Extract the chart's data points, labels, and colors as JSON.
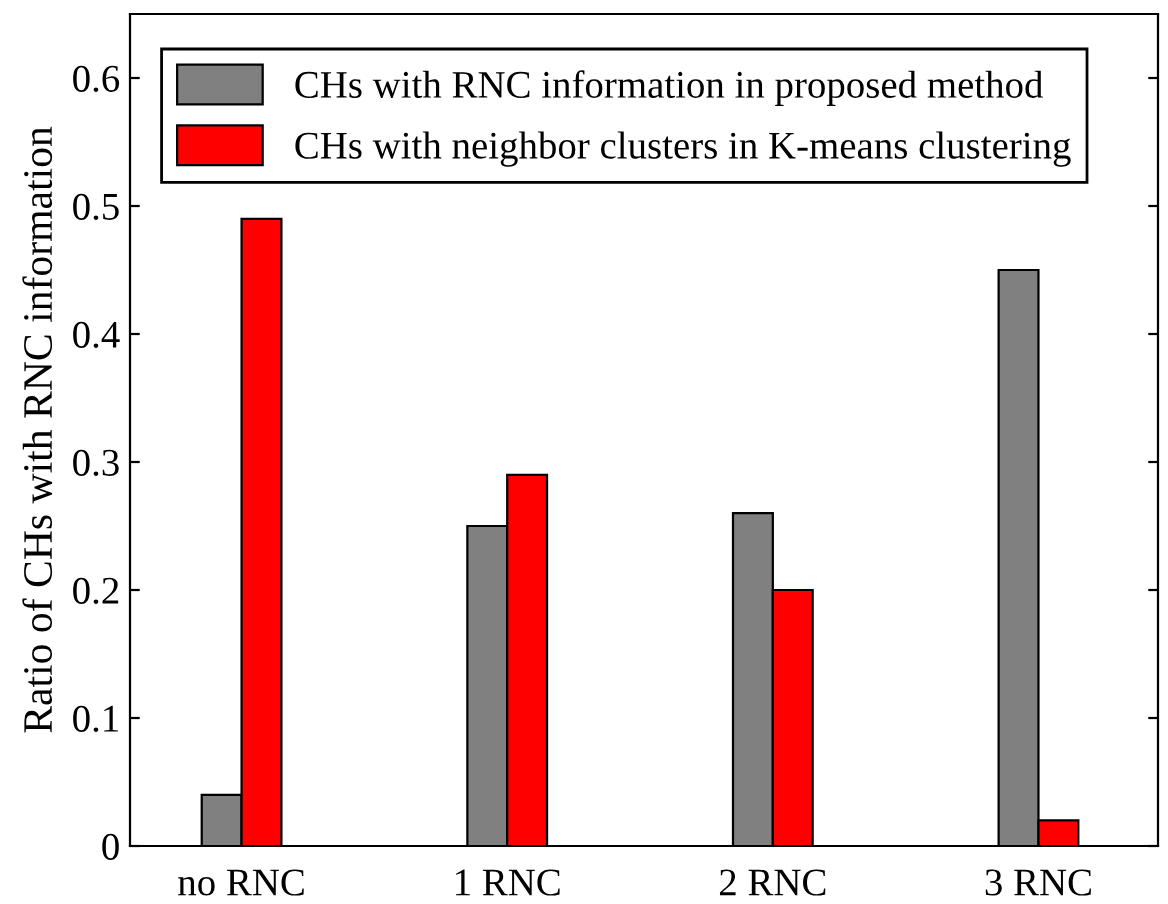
{
  "chart_data": {
    "type": "bar",
    "ylabel": "Ratio of CHs with RNC information",
    "categories": [
      "no RNC",
      "1 RNC",
      "2 RNC",
      "3 RNC"
    ],
    "series": [
      {
        "name": "CHs with RNC information in proposed method",
        "color": "#808080",
        "values": [
          0.04,
          0.25,
          0.26,
          0.45
        ]
      },
      {
        "name": "CHs with neighbor clusters in K-means clustering",
        "color": "#ff0000",
        "values": [
          0.49,
          0.29,
          0.2,
          0.02
        ]
      }
    ],
    "ylim": [
      0,
      0.65
    ],
    "yticks": [
      0,
      0.1,
      0.2,
      0.3,
      0.4,
      0.5,
      0.6
    ],
    "grid": false,
    "legend": "top right"
  }
}
